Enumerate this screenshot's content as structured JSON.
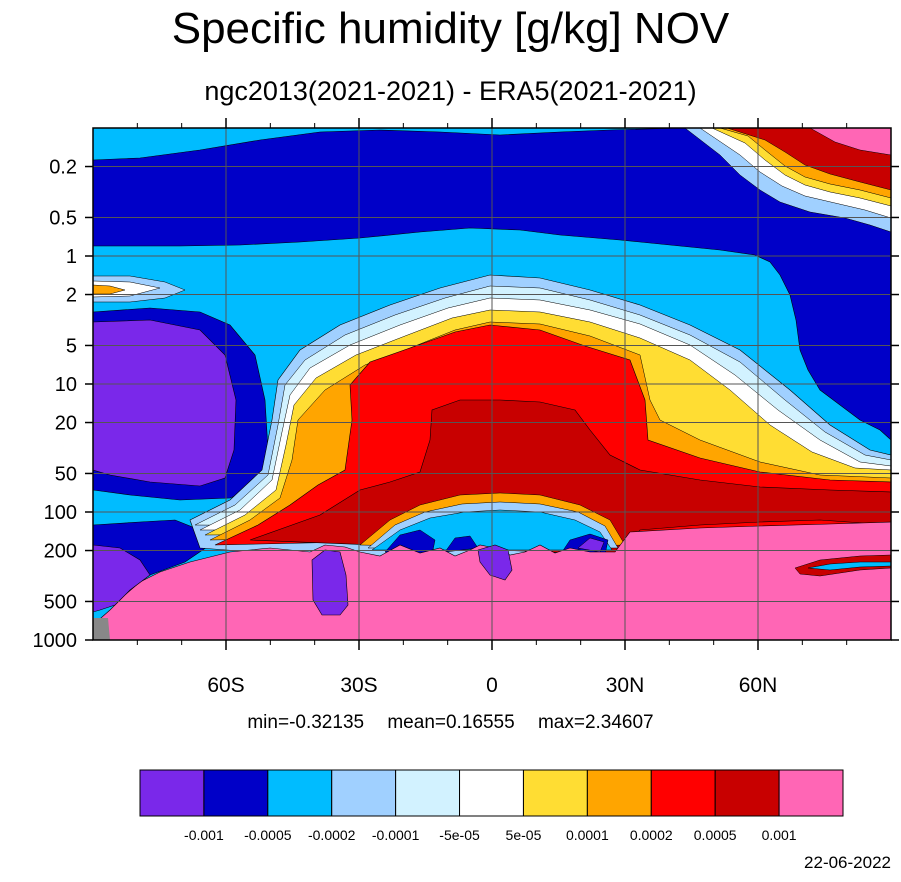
{
  "title": "Specific humidity [g/kg] NOV",
  "subtitle": "ngc2013(2021-2021) - ERA5(2021-2021)",
  "stats": {
    "min": "min=-0.32135",
    "mean": "mean=0.16555",
    "max": "max=2.34607"
  },
  "date": "22-06-2022",
  "colors": {
    "c1": "#7a28ea",
    "c2": "#0000c8",
    "c3": "#00bcff",
    "c4": "#a0d0ff",
    "c5": "#d2f2ff",
    "c6": "#ffffff",
    "c7": "#ffdd33",
    "c8": "#ffa500",
    "c9": "#ff0000",
    "c10": "#c80000",
    "c11": "#ff66b5",
    "missing": "#888888"
  },
  "chart_data": {
    "type": "heatmap",
    "y_axis": {
      "scale": "log",
      "reversed": true,
      "range": [
        0.1,
        1000
      ],
      "ticks": [
        0.2,
        0.5,
        1,
        2,
        5,
        10,
        20,
        50,
        100,
        200,
        500,
        1000
      ],
      "tick_labels": [
        "0.2",
        "0.5",
        "1",
        "2",
        "5",
        "10",
        "20",
        "50",
        "100",
        "200",
        "500",
        "1000"
      ]
    },
    "x_axis": {
      "range": [
        -90,
        90
      ],
      "ticks": [
        -60,
        -30,
        0,
        30,
        60
      ],
      "tick_labels": [
        "60S",
        "30S",
        "0",
        "30N",
        "60N"
      ]
    },
    "grid": true,
    "contour_levels": [
      "-0.001",
      "-0.0005",
      "-0.0002",
      "-0.0001",
      "-5e-05",
      "5e-05",
      "0.0001",
      "0.0002",
      "0.0005",
      "0.001"
    ],
    "colorbar": {
      "orientation": "horizontal",
      "placement": "bottom",
      "colors": [
        "c1",
        "c2",
        "c3",
        "c4",
        "c5",
        "c6",
        "c7",
        "c8",
        "c9",
        "c10",
        "c11"
      ]
    }
  }
}
